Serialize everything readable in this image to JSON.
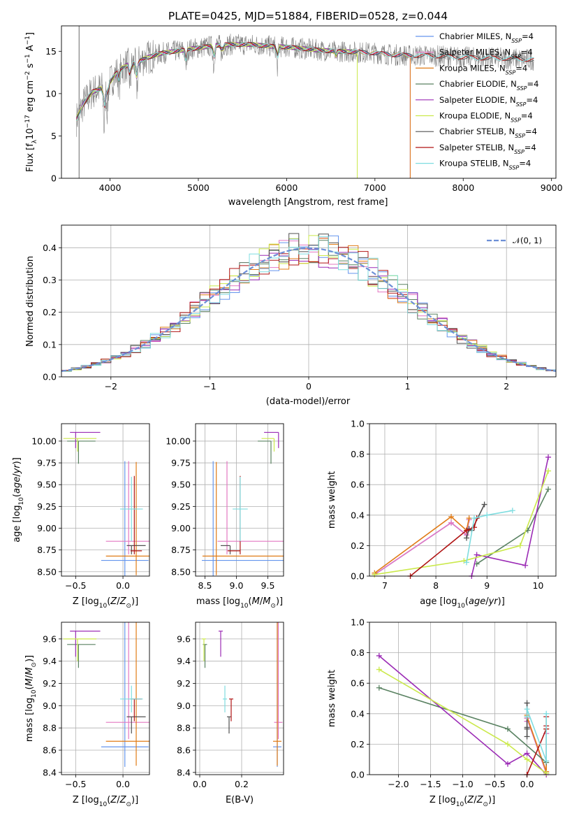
{
  "figure": {
    "title": "PLATE=0425, MJD=51884, FIBERID=0528, z=0.044"
  },
  "colors": {
    "Chabrier MILES": "#6495ed",
    "Salpeter MILES": "#e377c2",
    "Kroupa MILES": "#e07b16",
    "Chabrier ELODIE": "#5a8262",
    "Salpeter ELODIE": "#9b2bb5",
    "Kroupa ELODIE": "#cbe94c",
    "Chabrier STELIB": "#505050",
    "Salpeter STELIB": "#b01414",
    "Kroupa STELIB": "#7fdde0",
    "gaussian": "#6d8fd6",
    "data": "#808080"
  },
  "chart_data": [
    {
      "id": "spectrum",
      "type": "line",
      "title": "PLATE=0425, MJD=51884, FIBERID=0528, z=0.044",
      "xlabel": "wavelength [Angstrom, rest frame]",
      "ylabel": "Flux [f_λ 10^-17 erg cm^-2 s^-1 A^-1]",
      "xlim": [
        3450,
        9050
      ],
      "ylim": [
        0,
        18
      ],
      "xticks": [
        4000,
        5000,
        6000,
        7000,
        8000,
        9000
      ],
      "yticks": [
        0,
        5,
        10,
        15
      ],
      "grid": false,
      "legend_position": "top-right",
      "legend": [
        "Chabrier MILES, N_SSP=4",
        "Salpeter MILES, N_SSP=4",
        "Kroupa MILES, N_SSP=4",
        "Chabrier ELODIE, N_SSP=4",
        "Salpeter ELODIE, N_SSP=4",
        "Kroupa ELODIE, N_SSP=4",
        "Chabrier STELIB, N_SSP=4",
        "Salpeter STELIB, N_SSP=4",
        "Kroupa STELIB, N_SSP=4"
      ],
      "continuum": {
        "x": [
          3620,
          3700,
          3800,
          3900,
          4000,
          4100,
          4200,
          4300,
          4400,
          4600,
          4800,
          5000,
          5200,
          5400,
          5600,
          5800,
          6000,
          6200,
          6400,
          6600,
          6800,
          7000,
          7200,
          7400,
          7600,
          7800,
          8000,
          8200,
          8400,
          8600,
          8800
        ],
        "y": [
          7.0,
          8.8,
          10.2,
          10.6,
          11.4,
          12.8,
          13.4,
          13.6,
          14.2,
          14.8,
          15.1,
          15.4,
          15.7,
          15.8,
          15.8,
          15.6,
          15.5,
          15.3,
          15.1,
          15.0,
          14.9,
          14.8,
          14.6,
          14.5,
          14.5,
          14.4,
          14.3,
          14.2,
          14.2,
          14.1,
          14.0
        ]
      },
      "dips": [
        {
          "x": 3934,
          "depth": 5.0
        },
        {
          "x": 3969,
          "depth": 3.0
        },
        {
          "x": 4102,
          "depth": 2.0
        },
        {
          "x": 4227,
          "depth": 2.5
        },
        {
          "x": 4304,
          "depth": 3.0
        },
        {
          "x": 4861,
          "depth": 2.0
        },
        {
          "x": 5175,
          "depth": 2.5
        },
        {
          "x": 5270,
          "depth": 1.5
        },
        {
          "x": 5893,
          "depth": 2.5
        },
        {
          "x": 6563,
          "depth": 1.0
        }
      ],
      "model_endpoints": {
        "Chabrier MILES": 7400,
        "Salpeter MILES": 7400,
        "Kroupa MILES": 7400,
        "Chabrier ELODIE": 6800,
        "Salpeter ELODIE": 6800,
        "Kroupa ELODIE": 6800,
        "Chabrier STELIB": 8800,
        "Salpeter STELIB": 8800,
        "Kroupa STELIB": 8800
      }
    },
    {
      "id": "residuals",
      "type": "histogram",
      "xlabel": "(data-model)/error",
      "ylabel": "Normed distribution",
      "xlim": [
        -2.5,
        2.5
      ],
      "ylim": [
        0,
        0.47
      ],
      "xticks": [
        -2,
        -1,
        0,
        1,
        2
      ],
      "yticks": [
        0.0,
        0.1,
        0.2,
        0.3,
        0.4
      ],
      "grid": true,
      "legend_position": "top-right",
      "legend": [
        "N(0, 1)"
      ],
      "bin_width": 0.1
    },
    {
      "id": "age_vs_Z",
      "type": "scatter",
      "xlabel": "Z [log10(Z/Z☉)]",
      "ylabel": "age [log10(age/yr)]",
      "xlim": [
        -0.65,
        0.28
      ],
      "ylim": [
        8.45,
        10.2
      ],
      "xticks": [
        -0.5,
        0.0
      ],
      "yticks": [
        8.5,
        8.75,
        9.0,
        9.25,
        9.5,
        9.75,
        10.0
      ],
      "grid": true
    },
    {
      "id": "age_vs_mass",
      "type": "scatter",
      "xlabel": "mass [log10(M/M☉)]",
      "xlim": [
        8.35,
        9.75
      ],
      "ylim": [
        8.45,
        10.2
      ],
      "xticks": [
        8.5,
        9.0,
        9.5
      ],
      "yticks": [
        8.5,
        8.75,
        9.0,
        9.25,
        9.5,
        9.75,
        10.0
      ],
      "grid": true
    },
    {
      "id": "weight_vs_age",
      "type": "line",
      "xlabel": "age [log10(age/yr)]",
      "ylabel": "mass weight",
      "xlim": [
        6.7,
        10.35
      ],
      "ylim": [
        0,
        1
      ],
      "xticks": [
        7,
        8,
        9,
        10
      ],
      "yticks": [
        0.0,
        0.2,
        0.4,
        0.6,
        0.8,
        1.0
      ],
      "grid": true
    },
    {
      "id": "mass_vs_Z",
      "type": "scatter",
      "xlabel": "Z [log10(Z/Z☉)]",
      "ylabel": "mass [log10(M/M☉)]",
      "xlim": [
        -0.65,
        0.28
      ],
      "ylim": [
        8.38,
        9.75
      ],
      "xticks": [
        -0.5,
        0.0
      ],
      "yticks": [
        8.4,
        8.6,
        8.8,
        9.0,
        9.2,
        9.4,
        9.6
      ],
      "grid": true
    },
    {
      "id": "mass_vs_ebv",
      "type": "scatter",
      "xlabel": "E(B-V)",
      "xlim": [
        -0.02,
        0.4
      ],
      "ylim": [
        8.38,
        9.75
      ],
      "xticks": [
        0.0,
        0.2
      ],
      "yticks": [
        8.4,
        8.6,
        8.8,
        9.0,
        9.2,
        9.4,
        9.6
      ],
      "grid": true
    },
    {
      "id": "weight_vs_Z",
      "type": "line",
      "xlabel": "Z [log10(Z/Z☉)]",
      "ylabel": "mass weight",
      "xlim": [
        -2.45,
        0.45
      ],
      "ylim": [
        0,
        1
      ],
      "xticks": [
        -2.0,
        -1.5,
        -1.0,
        -0.5,
        0.0
      ],
      "yticks": [
        0.0,
        0.2,
        0.4,
        0.6,
        0.8,
        1.0
      ],
      "grid": true
    }
  ],
  "fits": [
    {
      "model": "Chabrier MILES",
      "age": 8.63,
      "age_err": [
        0.18,
        1.14
      ],
      "Z": 0.02,
      "Z_err": [
        0.25,
        0.25
      ],
      "mass": 8.63,
      "mass_err": [
        0.18,
        1.14
      ],
      "ebv": 0.37,
      "ebv_err": 0.02,
      "sfh_age": [
        6.8,
        8.3,
        8.6,
        8.65
      ],
      "sfh_Z": [
        0.3,
        0.0,
        0.3,
        0.0
      ],
      "sfh_w": [
        0.01,
        0.35,
        0.27,
        0.37
      ]
    },
    {
      "model": "Salpeter MILES",
      "age": 8.85,
      "age_err": [
        0.15,
        0.92
      ],
      "Z": 0.06,
      "Z_err": [
        0.24,
        0.22
      ],
      "mass": 8.85,
      "mass_err": [
        0.15,
        0.92
      ],
      "ebv": 0.375,
      "ebv_err": 0.02,
      "sfh_age": [
        6.8,
        8.3,
        8.6,
        8.65
      ],
      "sfh_Z": [
        0.3,
        0.0,
        0.3,
        0.0
      ],
      "sfh_w": [
        0.01,
        0.35,
        0.27,
        0.37
      ]
    },
    {
      "model": "Kroupa MILES",
      "age": 8.68,
      "age_err": [
        0.22,
        1.08
      ],
      "Z": 0.14,
      "Z_err": [
        0.32,
        0.23
      ],
      "mass": 8.68,
      "mass_err": [
        0.22,
        1.08
      ],
      "ebv": 0.37,
      "ebv_err": 0.02,
      "sfh_age": [
        6.8,
        8.3,
        8.6,
        8.65
      ],
      "sfh_Z": [
        0.3,
        0.0,
        0.3,
        0.0
      ],
      "sfh_w": [
        0.02,
        0.39,
        0.3,
        0.38
      ]
    },
    {
      "model": "Chabrier ELODIE",
      "age": 10.0,
      "age_err": [
        0.26,
        0.0
      ],
      "Z": -0.47,
      "Z_err": [
        0.12,
        0.18
      ],
      "mass": 9.55,
      "mass_err": [
        0.21,
        0.0
      ],
      "ebv": 0.025,
      "ebv_err": 0.01,
      "sfh_age": [
        8.8,
        9.8,
        10.2
      ],
      "sfh_Z": [
        0.3,
        -0.3,
        -2.3
      ],
      "sfh_w": [
        0.08,
        0.3,
        0.57
      ]
    },
    {
      "model": "Salpeter ELODIE",
      "age": 10.1,
      "age_err": [
        0.18,
        0.0
      ],
      "Z": -0.5,
      "Z_err": [
        0.06,
        0.26
      ],
      "mass": 9.67,
      "mass_err": [
        0.23,
        0.0
      ],
      "ebv": 0.1,
      "ebv_err": 0.01,
      "sfh_age": [
        8.7,
        8.8,
        9.75,
        10.2
      ],
      "sfh_Z": [
        0.3,
        0.0,
        -0.3,
        -2.3
      ],
      "sfh_w": [
        0.0,
        0.14,
        0.07,
        0.78
      ]
    },
    {
      "model": "Kroupa ELODIE",
      "age": 10.03,
      "age_err": [
        0.15,
        0.0
      ],
      "Z": -0.48,
      "Z_err": [
        0.15,
        0.2
      ],
      "mass": 9.6,
      "mass_err": [
        0.2,
        0.0
      ],
      "ebv": 0.02,
      "ebv_err": 0.01,
      "sfh_age": [
        6.8,
        8.55,
        9.65,
        10.2
      ],
      "sfh_Z": [
        0.3,
        0.0,
        -0.3,
        -2.3
      ],
      "sfh_w": [
        0.01,
        0.1,
        0.2,
        0.69
      ]
    },
    {
      "model": "Chabrier STELIB",
      "age": 8.8,
      "age_err": [
        0.1,
        0.0
      ],
      "Z": 0.09,
      "Z_err": [
        0.05,
        0.15
      ],
      "mass": 8.9,
      "mass_err": [
        0.15,
        0.0
      ],
      "ebv": 0.14,
      "ebv_err": 0.01,
      "sfh_age": [
        8.6,
        8.65,
        8.7,
        8.95
      ],
      "sfh_Z": [
        0.0,
        0.0,
        0.0,
        0.0
      ],
      "sfh_w": [
        0.25,
        0.31,
        0.3,
        0.47
      ]
    },
    {
      "model": "Salpeter STELIB",
      "age": 8.74,
      "age_err": [
        0.04,
        0.86
      ],
      "Z": 0.12,
      "Z_err": [
        0.04,
        0.08
      ],
      "mass": 9.06,
      "mass_err": [
        0.2,
        0.0
      ],
      "ebv": 0.15,
      "ebv_err": 0.01,
      "sfh_age": [
        7.5,
        8.6,
        8.75,
        8.8
      ],
      "sfh_Z": [
        0.0,
        0.3,
        0.3,
        0.3
      ],
      "sfh_w": [
        0.0,
        0.3,
        0.32,
        0.38
      ]
    },
    {
      "model": "Kroupa STELIB",
      "age": 9.22,
      "age_err": [
        0.37,
        0.37
      ],
      "Z": 0.09,
      "Z_err": [
        0.12,
        0.12
      ],
      "mass": 9.06,
      "mass_err": [
        0.12,
        0.12
      ],
      "ebv": 0.12,
      "ebv_err": 0.01,
      "sfh_age": [
        8.6,
        8.75,
        9.0,
        9.5
      ],
      "sfh_Z": [
        0.3,
        0.0,
        0.3,
        0.0
      ],
      "sfh_w": [
        0.09,
        0.38,
        0.4,
        0.43
      ]
    }
  ]
}
